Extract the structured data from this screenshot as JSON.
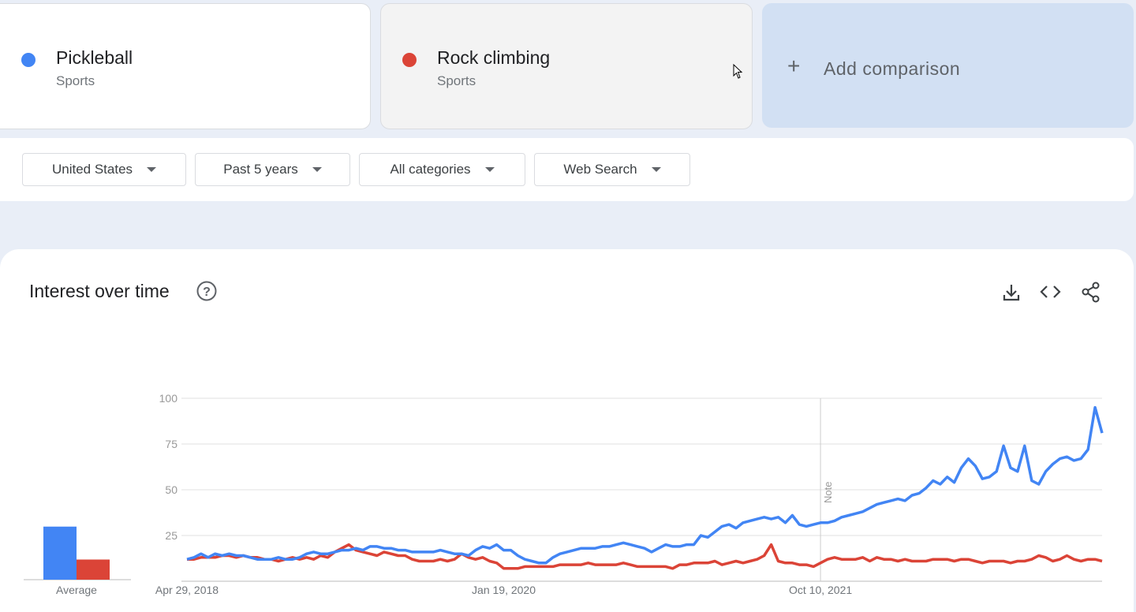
{
  "comparison": [
    {
      "term": "Pickleball",
      "category": "Sports"
    },
    {
      "term": "Rock climbing",
      "category": "Sports"
    }
  ],
  "add_comparison": "Add comparison",
  "filters": [
    "United States",
    "Past 5 years",
    "All categories",
    "Web Search"
  ],
  "section_title": "Interest over time",
  "chart_data": {
    "type": "line",
    "categories": [
      "Apr 29, 2018",
      null,
      null,
      null,
      null,
      null,
      null,
      null,
      null,
      null,
      null,
      null,
      null,
      null,
      null,
      null,
      null,
      null,
      null,
      null,
      null,
      null,
      null,
      null,
      null,
      null,
      null,
      null,
      null,
      null,
      null,
      null,
      null,
      null,
      null,
      null,
      null,
      null,
      null,
      null,
      null,
      null,
      null,
      null,
      null,
      "Jan 19, 2020",
      null,
      null,
      null,
      null,
      null,
      null,
      null,
      null,
      null,
      null,
      null,
      null,
      null,
      null,
      null,
      null,
      null,
      null,
      null,
      null,
      null,
      null,
      null,
      null,
      null,
      null,
      null,
      null,
      null,
      null,
      null,
      null,
      null,
      null,
      null,
      null,
      null,
      null,
      null,
      null,
      null,
      null,
      null,
      null,
      "Oct 10, 2021",
      null,
      null,
      null,
      null,
      null,
      null,
      null,
      null,
      null,
      null,
      null,
      null,
      null,
      null,
      null,
      null,
      null,
      null,
      null,
      null,
      null,
      null,
      null,
      null,
      null,
      null,
      null,
      null,
      null,
      null,
      null,
      null,
      null,
      null,
      null,
      null,
      null,
      null,
      null,
      null
    ],
    "series": [
      {
        "name": "Pickleball",
        "color": "#4285f4",
        "values": [
          12,
          13,
          15,
          13,
          15,
          14,
          15,
          14,
          14,
          13,
          12,
          12,
          12,
          13,
          12,
          12,
          13,
          15,
          16,
          15,
          15,
          16,
          17,
          17,
          18,
          17,
          19,
          19,
          18,
          18,
          17,
          17,
          16,
          16,
          16,
          16,
          17,
          16,
          15,
          15,
          14,
          17,
          19,
          18,
          20,
          17,
          17,
          14,
          12,
          11,
          10,
          10,
          13,
          15,
          16,
          17,
          18,
          18,
          18,
          19,
          19,
          20,
          21,
          20,
          19,
          18,
          16,
          18,
          20,
          19,
          19,
          20,
          20,
          25,
          24,
          27,
          30,
          31,
          29,
          32,
          33,
          34,
          35,
          34,
          35,
          32,
          36,
          31,
          30,
          31,
          32,
          32,
          33,
          35,
          36,
          37,
          38,
          40,
          42,
          43,
          44,
          45,
          44,
          47,
          48,
          51,
          55,
          53,
          57,
          54,
          62,
          67,
          63,
          56,
          57,
          60,
          74,
          62,
          60,
          74,
          55,
          53,
          60,
          64,
          67,
          68,
          66,
          67,
          72,
          95,
          81
        ]
      },
      {
        "name": "Rock climbing",
        "color": "#db4437",
        "values": [
          12,
          12,
          13,
          13,
          13,
          14,
          14,
          13,
          14,
          13,
          13,
          12,
          12,
          11,
          12,
          13,
          12,
          13,
          12,
          14,
          13,
          16,
          18,
          20,
          17,
          16,
          15,
          14,
          16,
          15,
          14,
          14,
          12,
          11,
          11,
          11,
          12,
          11,
          12,
          15,
          13,
          12,
          13,
          11,
          10,
          7,
          7,
          7,
          8,
          8,
          8,
          8,
          8,
          9,
          9,
          9,
          9,
          10,
          9,
          9,
          9,
          9,
          10,
          9,
          8,
          8,
          8,
          8,
          8,
          7,
          9,
          9,
          10,
          10,
          10,
          11,
          9,
          10,
          11,
          10,
          11,
          12,
          14,
          20,
          11,
          10,
          10,
          9,
          9,
          8,
          10,
          12,
          13,
          12,
          12,
          12,
          13,
          11,
          13,
          12,
          12,
          11,
          12,
          11,
          11,
          11,
          12,
          12,
          12,
          11,
          12,
          12,
          11,
          10,
          11,
          11,
          11,
          10,
          11,
          11,
          12,
          14,
          13,
          11,
          12,
          14,
          12,
          11,
          12,
          12,
          11
        ]
      }
    ],
    "averages": {
      "label": "Average",
      "values": [
        29,
        11
      ]
    },
    "note": "Note",
    "ylim": [
      0,
      100
    ],
    "yticks": [
      25,
      50,
      75,
      100
    ],
    "grid": true
  }
}
